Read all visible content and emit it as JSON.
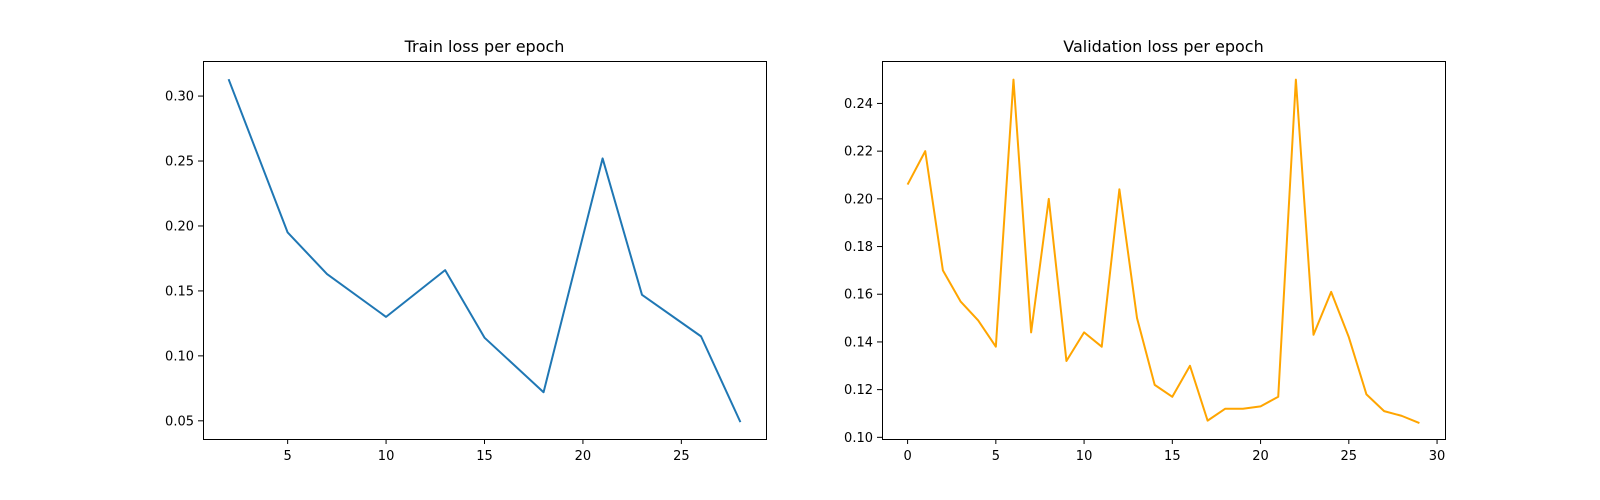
{
  "chart_data": [
    {
      "type": "line",
      "title": "Train loss per epoch",
      "xlabel": "",
      "ylabel": "",
      "xlim": [
        0.7,
        29.3
      ],
      "ylim": [
        0.036,
        0.327
      ],
      "xticks": [
        5,
        10,
        15,
        20,
        25
      ],
      "yticks": [
        0.05,
        0.1,
        0.15,
        0.2,
        0.25,
        0.3
      ],
      "ytick_labels": [
        "0.05",
        "0.10",
        "0.15",
        "0.20",
        "0.25",
        "0.30"
      ],
      "grid": false,
      "series": [
        {
          "color": "#1f77b4",
          "x": [
            2,
            5,
            7,
            10,
            13,
            15,
            18,
            21,
            23,
            26,
            28
          ],
          "y": [
            0.313,
            0.195,
            0.163,
            0.13,
            0.166,
            0.114,
            0.072,
            0.252,
            0.147,
            0.115,
            0.049
          ]
        }
      ]
    },
    {
      "type": "line",
      "title": "Validation loss per epoch",
      "xlabel": "",
      "ylabel": "",
      "xlim": [
        -1.45,
        30.45
      ],
      "ylim": [
        0.0993,
        0.2578
      ],
      "xticks": [
        0,
        5,
        10,
        15,
        20,
        25,
        30
      ],
      "yticks": [
        0.1,
        0.12,
        0.14,
        0.16,
        0.18,
        0.2,
        0.22,
        0.24
      ],
      "ytick_labels": [
        "0.10",
        "0.12",
        "0.14",
        "0.16",
        "0.18",
        "0.20",
        "0.22",
        "0.24"
      ],
      "grid": false,
      "series": [
        {
          "color": "#ffa500",
          "x": [
            0,
            1,
            2,
            3,
            4,
            5,
            6,
            7,
            8,
            9,
            10,
            11,
            12,
            13,
            14,
            15,
            16,
            17,
            18,
            19,
            20,
            21,
            22,
            23,
            24,
            25,
            26,
            27,
            28,
            29
          ],
          "y": [
            0.206,
            0.22,
            0.17,
            0.157,
            0.149,
            0.138,
            0.25,
            0.144,
            0.2,
            0.132,
            0.144,
            0.138,
            0.204,
            0.15,
            0.122,
            0.117,
            0.13,
            0.107,
            0.112,
            0.112,
            0.113,
            0.117,
            0.25,
            0.143,
            0.161,
            0.142,
            0.118,
            0.111,
            0.109,
            0.106
          ]
        }
      ]
    }
  ]
}
